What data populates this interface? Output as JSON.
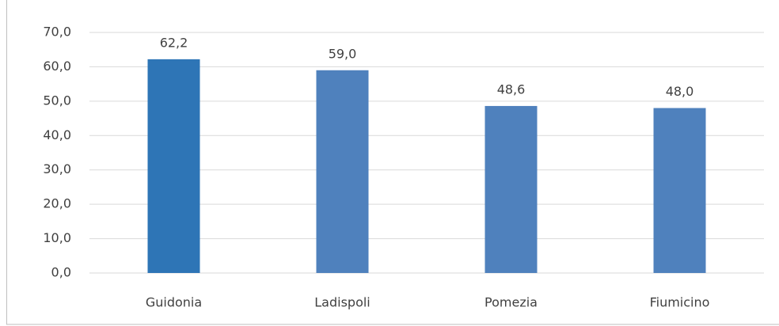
{
  "chart_data": {
    "type": "bar",
    "categories": [
      "Guidonia",
      "Ladispoli",
      "Pomezia",
      "Fiumicino"
    ],
    "values": [
      62.2,
      59.0,
      48.6,
      48.0
    ],
    "value_labels": [
      "62,2",
      "59,0",
      "48,6",
      "48,0"
    ],
    "colors": [
      "#2e75b6",
      "#4f81bd",
      "#4f81bd",
      "#4f81bd"
    ],
    "ylim": [
      0,
      70
    ],
    "yticks": [
      {
        "value": 0,
        "label": "0,0"
      },
      {
        "value": 10,
        "label": "10,0"
      },
      {
        "value": 20,
        "label": "20,0"
      },
      {
        "value": 30,
        "label": "30,0"
      },
      {
        "value": 40,
        "label": "40,0"
      },
      {
        "value": 50,
        "label": "50,0"
      },
      {
        "value": 60,
        "label": "60,0"
      },
      {
        "value": 70,
        "label": "70,0"
      }
    ],
    "grid": true
  }
}
